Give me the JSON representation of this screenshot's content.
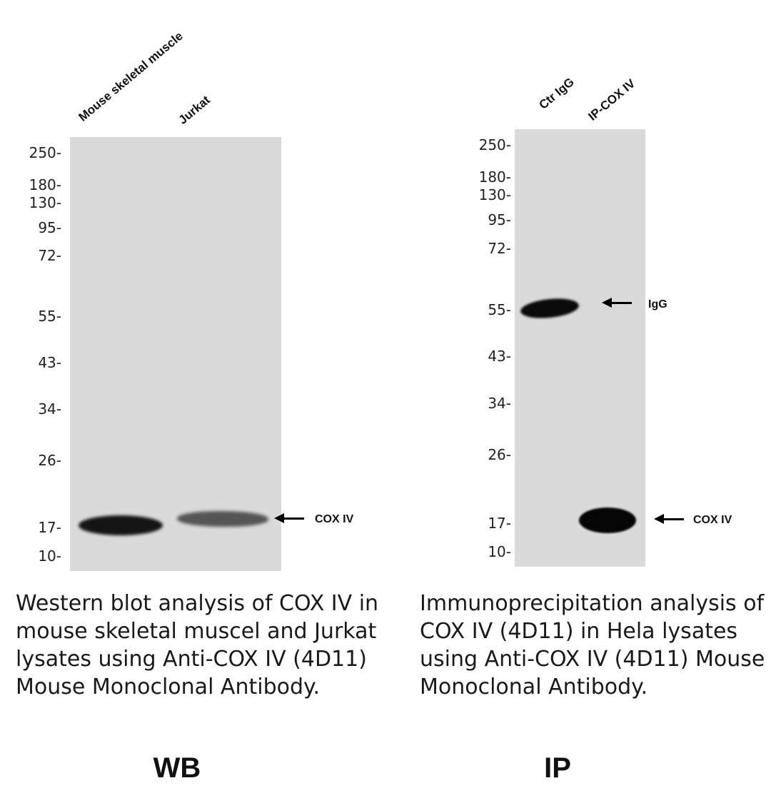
{
  "wb": {
    "lanes": [
      "Mouse skeletal muscle",
      "Jurkat"
    ],
    "markers": [
      "250-",
      "180-",
      "130-",
      "95-",
      "72-",
      "55-",
      "43-",
      "34-",
      "26-",
      "17-",
      "10-"
    ],
    "band_label": "COX IV",
    "caption": "Western blot analysis of COX IV in mouse skeletal muscel and Jurkat lysates using Anti-COX IV (4D11) Mouse Monoclonal Antibody.",
    "title": "WB"
  },
  "ip": {
    "lanes": [
      "Ctr IgG",
      "IP-COX IV"
    ],
    "markers": [
      "250-",
      "180-",
      "130-",
      "95-",
      "72-",
      "55-",
      "43-",
      "34-",
      "26-",
      "17-",
      "10-"
    ],
    "igg_label": "IgG",
    "band_label": "COX IV",
    "caption": "Immunoprecipitation analysis of COX IV (4D11) in Hela lysates using Anti-COX IV (4D11) Mouse Monoclonal Antibody.",
    "title": "IP"
  }
}
